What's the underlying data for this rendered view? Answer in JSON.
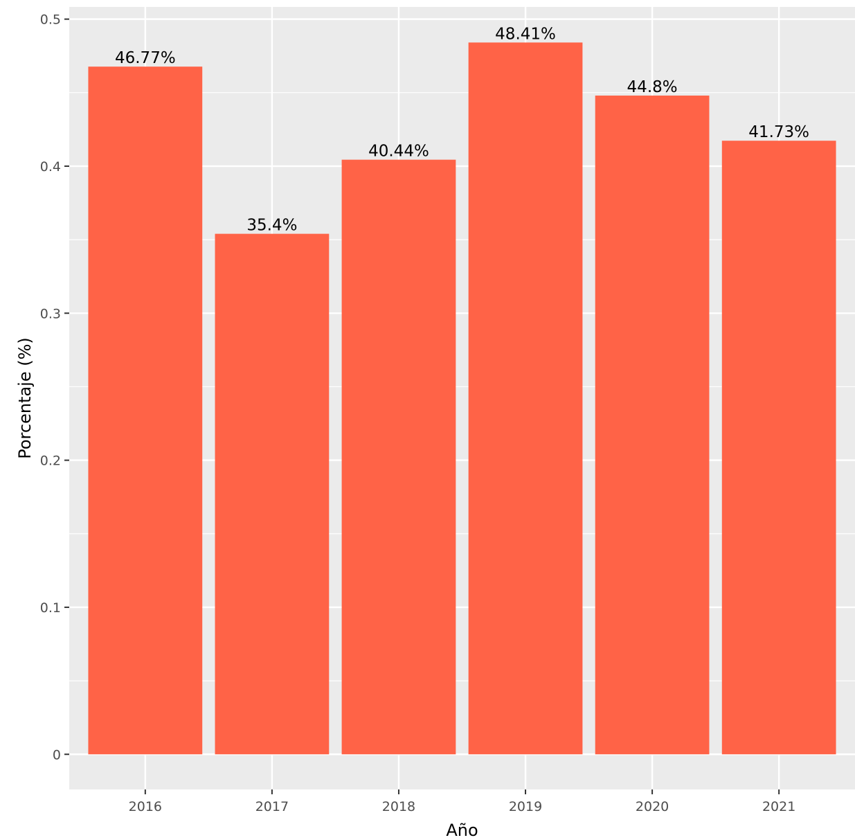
{
  "chart_data": {
    "type": "bar",
    "categories": [
      "2016",
      "2017",
      "2018",
      "2019",
      "2020",
      "2021"
    ],
    "values": [
      0.4677,
      0.354,
      0.4044,
      0.4841,
      0.448,
      0.4173
    ],
    "data_labels": [
      "46.77%",
      "35.4%",
      "40.44%",
      "48.41%",
      "44.8%",
      "41.73%"
    ],
    "title": "",
    "xlabel": "Año",
    "ylabel": "Porcentaje (%)",
    "ylim": [
      -0.0239,
      0.5083
    ],
    "yticks": [
      0,
      0.1,
      0.2,
      0.3,
      0.4,
      0.5
    ],
    "ytick_labels": [
      "0",
      "0.1",
      "0.2",
      "0.3",
      "0.4",
      "0.5"
    ],
    "grid": true,
    "legend": "none",
    "colors": {
      "bar": "#ff6347",
      "panel_background": "#ebebeb",
      "gridline": "#ffffff",
      "tick_label": "#4d4d4d",
      "axis_title": "#000000"
    }
  }
}
